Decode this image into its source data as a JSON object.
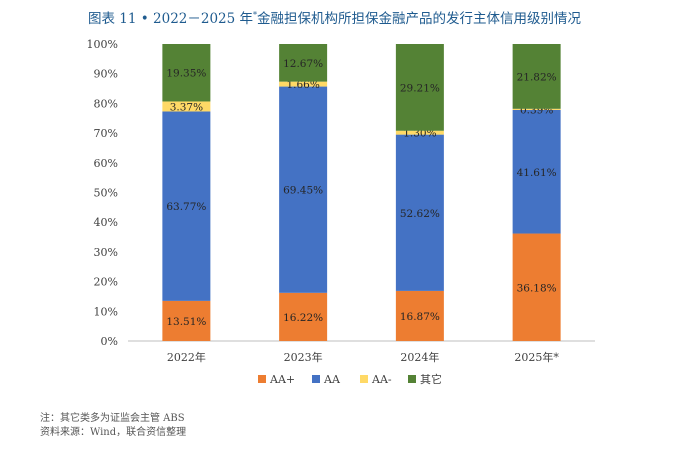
{
  "title": {
    "prefix": "图表 11 • 2022－2025 年",
    "sup": "*",
    "suffix": "金融担保机构所担保金融产品的发行主体信用级别情况"
  },
  "notes": [
    "注：其它类多为证监会主管 ABS",
    "资料来源：Wind，联合资信整理"
  ],
  "chart_data": {
    "type": "bar",
    "stacked": true,
    "categories": [
      "2022年",
      "2023年",
      "2024年",
      "2025年*"
    ],
    "series": [
      {
        "name": "AA+",
        "color": "#ed7d31",
        "values": [
          13.51,
          16.22,
          16.87,
          36.18
        ],
        "labels": [
          "13.51%",
          "16.22%",
          "16.87%",
          "36.18%"
        ]
      },
      {
        "name": "AA",
        "color": "#4472c4",
        "values": [
          63.77,
          69.45,
          52.62,
          41.61
        ],
        "labels": [
          "63.77%",
          "69.45%",
          "52.62%",
          "41.61%"
        ]
      },
      {
        "name": "AA-",
        "color": "#ffd966",
        "values": [
          3.37,
          1.66,
          1.3,
          0.39
        ],
        "labels": [
          "3.37%",
          "1.66%",
          "1.30%",
          "0.39%"
        ]
      },
      {
        "name": "其它",
        "color": "#548235",
        "values": [
          19.35,
          12.67,
          29.21,
          21.82
        ],
        "labels": [
          "19.35%",
          "12.67%",
          "29.21%",
          "21.82%"
        ]
      }
    ],
    "y_ticks": [
      "0%",
      "10%",
      "20%",
      "30%",
      "40%",
      "50%",
      "60%",
      "70%",
      "80%",
      "90%",
      "100%"
    ],
    "ylim": [
      0,
      100
    ],
    "grid": false,
    "legend_position": "bottom"
  }
}
